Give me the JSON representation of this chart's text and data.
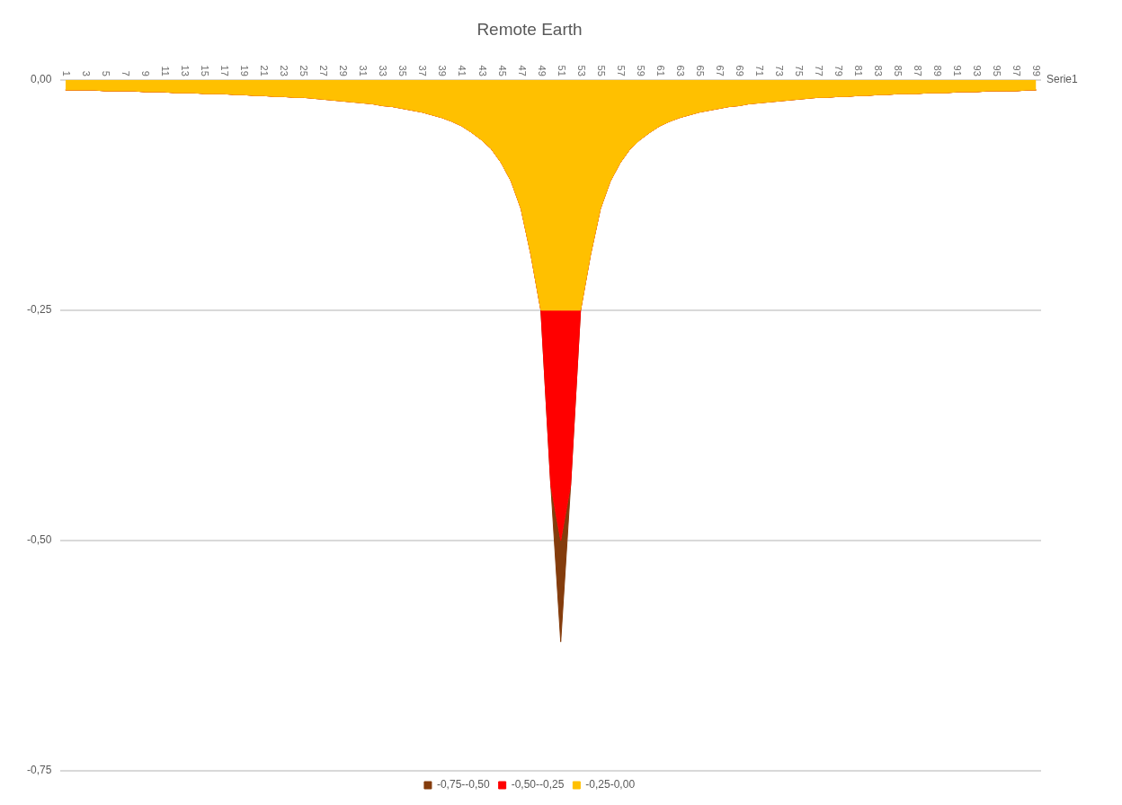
{
  "chart_data": {
    "type": "area",
    "title": "Remote Earth",
    "stacked": true,
    "categories": [
      "1",
      null,
      "3",
      null,
      "5",
      null,
      "7",
      null,
      "9",
      null,
      "11",
      null,
      "13",
      null,
      "15",
      null,
      "17",
      null,
      "19",
      null,
      "21",
      null,
      "23",
      null,
      "25",
      null,
      "27",
      null,
      "29",
      null,
      "31",
      null,
      "33",
      null,
      "35",
      null,
      "37",
      null,
      "39",
      null,
      "41",
      null,
      "43",
      null,
      "45",
      null,
      "47",
      null,
      "49",
      null,
      "51",
      null,
      "53",
      null,
      "55",
      null,
      "57",
      null,
      "59",
      null,
      "61",
      null,
      "63",
      null,
      "65",
      null,
      "67",
      null,
      "69",
      null,
      "71",
      null,
      "73",
      null,
      "75",
      null,
      "77",
      null,
      "79",
      null,
      "81",
      null,
      "83",
      null,
      "85",
      null,
      "87",
      null,
      "89",
      null,
      "91",
      null,
      "93",
      null,
      "95",
      null,
      "97",
      null,
      "99"
    ],
    "series": [
      {
        "name": "-0,25-0,00",
        "color": "#ffc000",
        "values": [
          -0.011,
          -0.011,
          -0.011,
          -0.011,
          -0.012,
          -0.012,
          -0.012,
          -0.012,
          -0.013,
          -0.013,
          -0.013,
          -0.014,
          -0.014,
          -0.014,
          -0.015,
          -0.015,
          -0.015,
          -0.016,
          -0.016,
          -0.017,
          -0.017,
          -0.018,
          -0.018,
          -0.019,
          -0.019,
          -0.02,
          -0.021,
          -0.022,
          -0.023,
          -0.024,
          -0.025,
          -0.026,
          -0.028,
          -0.029,
          -0.031,
          -0.033,
          -0.035,
          -0.038,
          -0.041,
          -0.045,
          -0.05,
          -0.057,
          -0.065,
          -0.075,
          -0.09,
          -0.11,
          -0.14,
          -0.19,
          -0.25,
          -0.25,
          -0.25,
          -0.25,
          -0.25,
          -0.19,
          -0.14,
          -0.11,
          -0.09,
          -0.075,
          -0.065,
          -0.057,
          -0.05,
          -0.045,
          -0.041,
          -0.038,
          -0.035,
          -0.033,
          -0.031,
          -0.029,
          -0.028,
          -0.026,
          -0.025,
          -0.024,
          -0.023,
          -0.022,
          -0.021,
          -0.02,
          -0.019,
          -0.019,
          -0.018,
          -0.018,
          -0.017,
          -0.017,
          -0.016,
          -0.016,
          -0.015,
          -0.015,
          -0.015,
          -0.014,
          -0.014,
          -0.014,
          -0.013,
          -0.013,
          -0.013,
          -0.012,
          -0.012,
          -0.012,
          -0.012,
          -0.011,
          -0.011
        ]
      },
      {
        "name": "-0,50--0,25",
        "color": "#ff0000",
        "values": [
          0,
          0,
          0,
          0,
          0,
          0,
          0,
          0,
          0,
          0,
          0,
          0,
          0,
          0,
          0,
          0,
          0,
          0,
          0,
          0,
          0,
          0,
          0,
          0,
          0,
          0,
          0,
          0,
          0,
          0,
          0,
          0,
          0,
          0,
          0,
          0,
          0,
          0,
          0,
          0,
          0,
          0,
          0,
          0,
          0,
          0,
          0,
          0,
          0,
          -0.19,
          -0.25,
          -0.19,
          0,
          0,
          0,
          0,
          0,
          0,
          0,
          0,
          0,
          0,
          0,
          0,
          0,
          0,
          0,
          0,
          0,
          0,
          0,
          0,
          0,
          0,
          0,
          0,
          0,
          0,
          0,
          0,
          0,
          0,
          0,
          0,
          0,
          0,
          0,
          0,
          0,
          0,
          0,
          0,
          0,
          0,
          0,
          0,
          0,
          0,
          0
        ]
      },
      {
        "name": "-0,75--0,50",
        "color": "#843c0c",
        "values": [
          0,
          0,
          0,
          0,
          0,
          0,
          0,
          0,
          0,
          0,
          0,
          0,
          0,
          0,
          0,
          0,
          0,
          0,
          0,
          0,
          0,
          0,
          0,
          0,
          0,
          0,
          0,
          0,
          0,
          0,
          0,
          0,
          0,
          0,
          0,
          0,
          0,
          0,
          0,
          0,
          0,
          0,
          0,
          0,
          0,
          0,
          0,
          0,
          0,
          0,
          -0.11,
          0,
          0,
          0,
          0,
          0,
          0,
          0,
          0,
          0,
          0,
          0,
          0,
          0,
          0,
          0,
          0,
          0,
          0,
          0,
          0,
          0,
          0,
          0,
          0,
          0,
          0,
          0,
          0,
          0,
          0,
          0,
          0,
          0,
          0,
          0,
          0,
          0,
          0,
          0,
          0,
          0,
          0,
          0,
          0,
          0,
          0,
          0,
          0
        ]
      }
    ],
    "annotations": [
      "Serie1"
    ],
    "ylim": [
      -0.75,
      0
    ],
    "yticks": [
      {
        "value": 0,
        "label": "0,00"
      },
      {
        "value": -0.25,
        "label": "-0,25"
      },
      {
        "value": -0.5,
        "label": "-0,50"
      },
      {
        "value": -0.75,
        "label": "-0,75"
      }
    ],
    "grid": "y",
    "legend": "bottom"
  }
}
